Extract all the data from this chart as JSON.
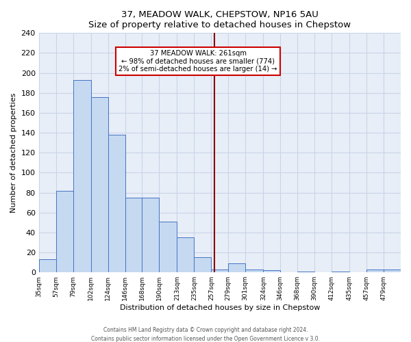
{
  "title": "37, MEADOW WALK, CHEPSTOW, NP16 5AU",
  "subtitle": "Size of property relative to detached houses in Chepstow",
  "xlabel": "Distribution of detached houses by size in Chepstow",
  "ylabel": "Number of detached properties",
  "bin_labels": [
    "35sqm",
    "57sqm",
    "79sqm",
    "102sqm",
    "124sqm",
    "146sqm",
    "168sqm",
    "190sqm",
    "213sqm",
    "235sqm",
    "257sqm",
    "279sqm",
    "301sqm",
    "324sqm",
    "346sqm",
    "368sqm",
    "390sqm",
    "412sqm",
    "435sqm",
    "457sqm",
    "479sqm"
  ],
  "bin_edges": [
    35,
    57,
    79,
    102,
    124,
    146,
    168,
    190,
    213,
    235,
    257,
    279,
    301,
    324,
    346,
    368,
    390,
    412,
    435,
    457,
    479,
    501
  ],
  "bar_heights": [
    13,
    82,
    193,
    176,
    138,
    75,
    75,
    51,
    35,
    15,
    3,
    9,
    3,
    2,
    0,
    1,
    0,
    1,
    0,
    3,
    3
  ],
  "bar_color": "#c5d9f1",
  "bar_edge_color": "#4472c4",
  "vline_x": 261,
  "vline_color": "#8b0000",
  "annotation_title": "37 MEADOW WALK: 261sqm",
  "annotation_line1": "← 98% of detached houses are smaller (774)",
  "annotation_line2": "2% of semi-detached houses are larger (14) →",
  "annotation_box_color": "#ffffff",
  "annotation_box_edge": "#cc0000",
  "ylim": [
    0,
    240
  ],
  "yticks": [
    0,
    20,
    40,
    60,
    80,
    100,
    120,
    140,
    160,
    180,
    200,
    220,
    240
  ],
  "fig_bg_color": "#ffffff",
  "plot_bg_color": "#e8eef7",
  "grid_color": "#c8d4e8",
  "footer1": "Contains HM Land Registry data © Crown copyright and database right 2024.",
  "footer2": "Contains public sector information licensed under the Open Government Licence v 3.0."
}
